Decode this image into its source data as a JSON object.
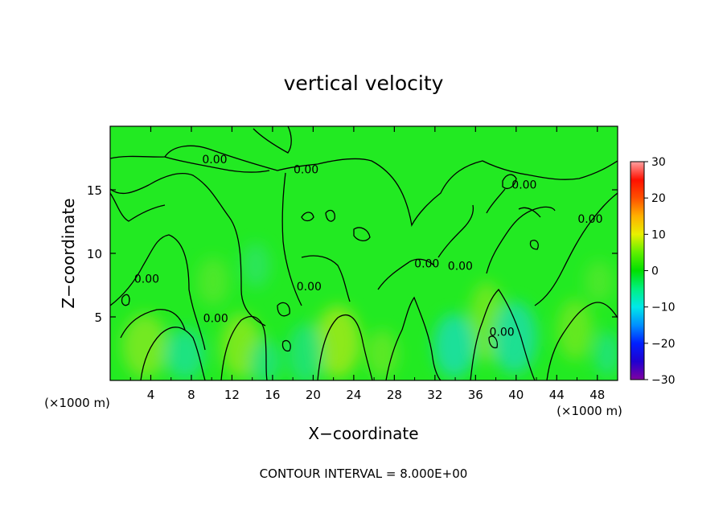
{
  "chart_data": {
    "type": "heatmap",
    "title": "vertical velocity",
    "xlabel": "X−coordinate",
    "ylabel": "Z−coordinate",
    "x_unit": "(×1000 m)",
    "z_unit": "(×1000 m)",
    "footer": "CONTOUR INTERVAL = 8.000E+00",
    "xlim": [
      0,
      50
    ],
    "ylim": [
      0,
      20
    ],
    "x_ticks": [
      4,
      8,
      12,
      16,
      20,
      24,
      28,
      32,
      36,
      40,
      44,
      48
    ],
    "x_tick_labels": [
      "4",
      "8",
      "12",
      "16",
      "20",
      "24",
      "28",
      "32",
      "36",
      "40",
      "44",
      "48"
    ],
    "y_ticks": [
      5,
      10,
      15
    ],
    "y_tick_labels": [
      "5",
      "10",
      "15"
    ],
    "colorbar": {
      "range": [
        -30,
        30
      ],
      "ticks": [
        30,
        20,
        10,
        0,
        -10,
        -20,
        -30
      ],
      "tick_labels": [
        "30",
        "20",
        "10",
        "0",
        "−10",
        "−20",
        "−30"
      ],
      "stops": [
        {
          "v": -30,
          "color": "#8000a0"
        },
        {
          "v": -25,
          "color": "#2000d0"
        },
        {
          "v": -20,
          "color": "#0020ff"
        },
        {
          "v": -15,
          "color": "#0090ff"
        },
        {
          "v": -10,
          "color": "#00e8e8"
        },
        {
          "v": -5,
          "color": "#00f080"
        },
        {
          "v": 0,
          "color": "#00e000"
        },
        {
          "v": 5,
          "color": "#60f000"
        },
        {
          "v": 10,
          "color": "#e8f000"
        },
        {
          "v": 15,
          "color": "#ffb000"
        },
        {
          "v": 20,
          "color": "#ff5000"
        },
        {
          "v": 25,
          "color": "#ff1000"
        },
        {
          "v": 30,
          "color": "#ffa0a0"
        }
      ]
    },
    "contour_labels": [
      {
        "x": 10.3,
        "z": 17.1,
        "text": "0.00"
      },
      {
        "x": 19.3,
        "z": 16.3,
        "text": "0.00"
      },
      {
        "x": 40.8,
        "z": 15.1,
        "text": "0.00"
      },
      {
        "x": 47.3,
        "z": 12.4,
        "text": "0.00"
      },
      {
        "x": 3.6,
        "z": 7.7,
        "text": "0.00"
      },
      {
        "x": 19.6,
        "z": 7.1,
        "text": "0.00"
      },
      {
        "x": 10.4,
        "z": 4.6,
        "text": "0.00"
      },
      {
        "x": 31.2,
        "z": 8.9,
        "text": "0.00"
      },
      {
        "x": 34.5,
        "z": 8.7,
        "text": "0.00"
      },
      {
        "x": 38.6,
        "z": 3.5,
        "text": "0.00"
      }
    ]
  }
}
